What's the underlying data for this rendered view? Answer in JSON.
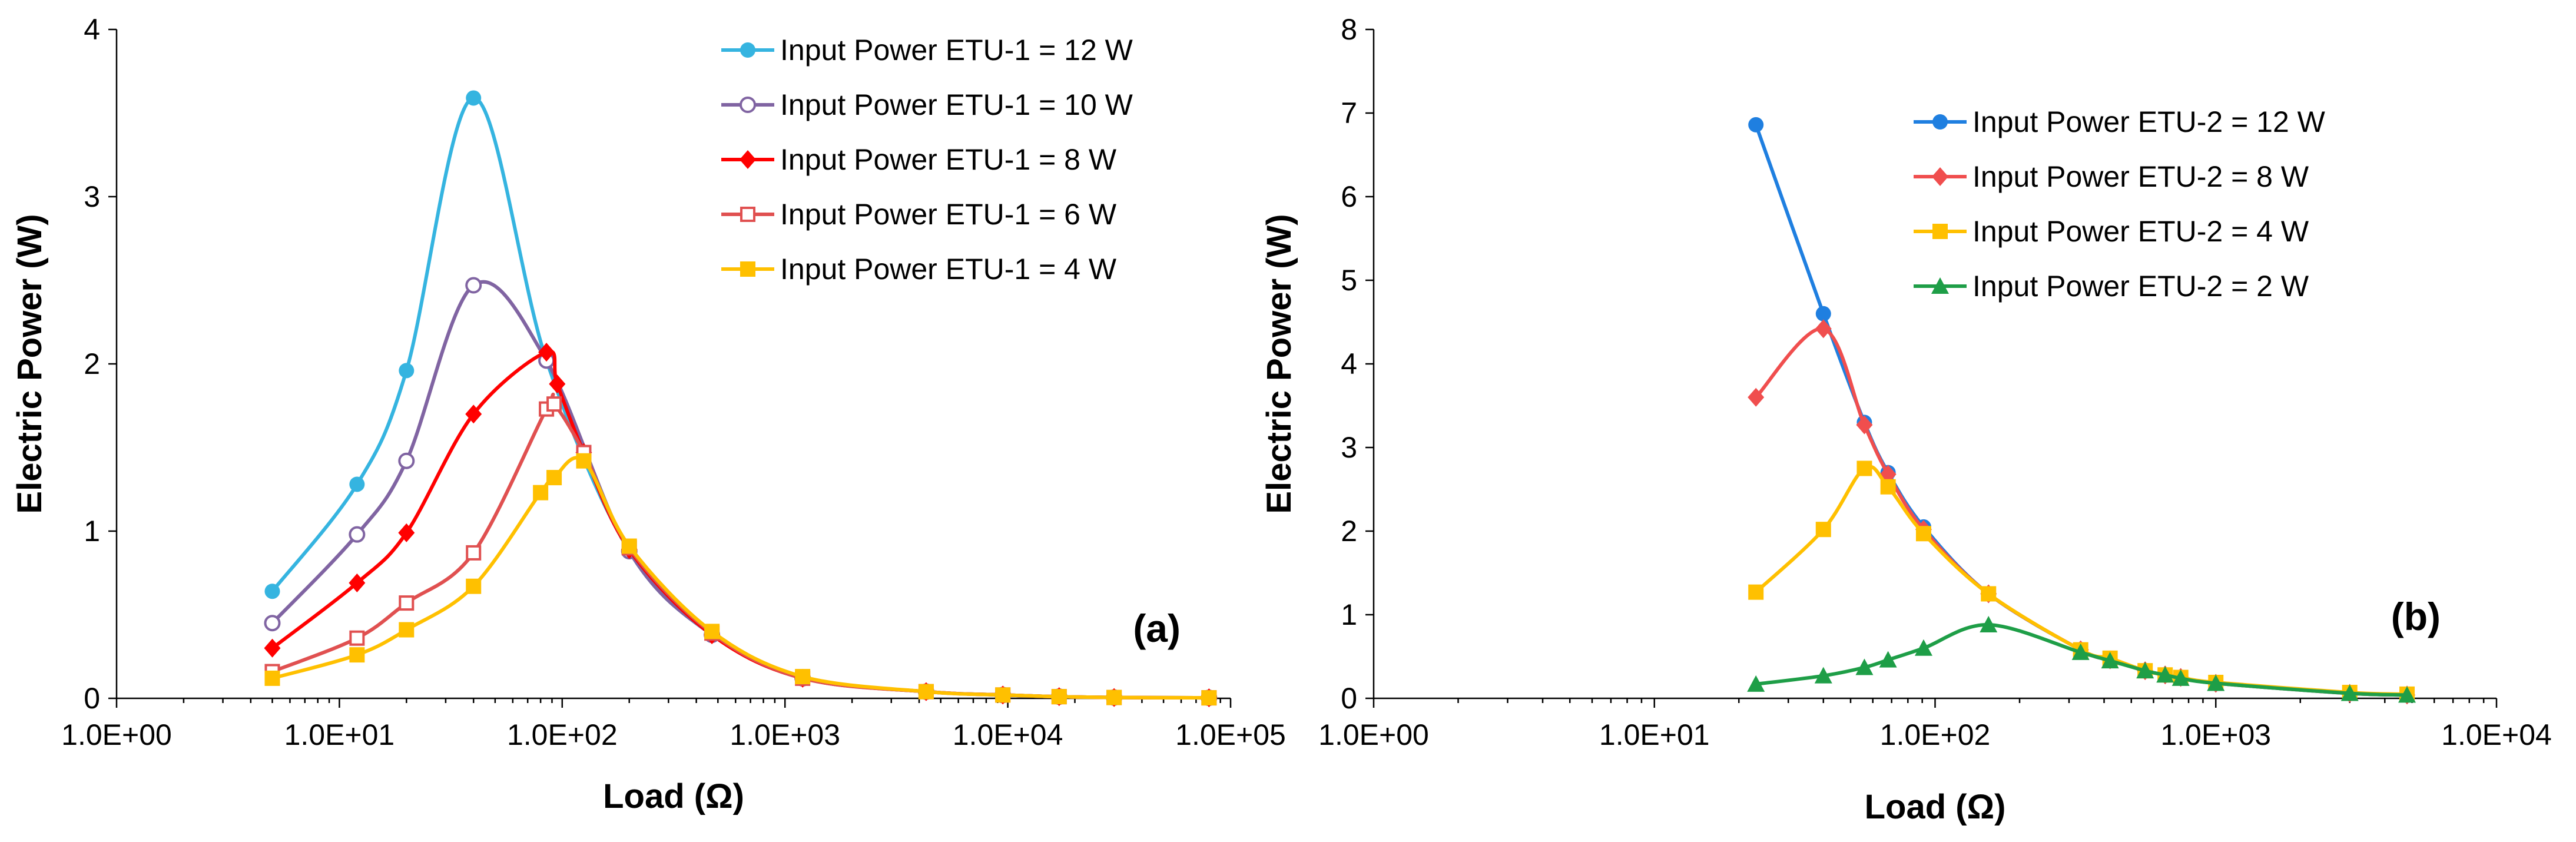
{
  "chart_data": [
    {
      "type": "line",
      "panel_label": "(a)",
      "xlabel": "Load (Ω)",
      "ylabel": "Electric Power (W)",
      "xscale": "log",
      "xlim": [
        1,
        100000
      ],
      "ylim": [
        0,
        4
      ],
      "x_ticks": [
        1,
        10,
        100,
        1000,
        10000,
        100000
      ],
      "x_tick_labels": [
        "1.0E+00",
        "1.0E+01",
        "1.0E+02",
        "1.0E+03",
        "1.0E+04",
        "1.0E+05"
      ],
      "y_ticks": [
        0,
        1,
        2,
        3,
        4
      ],
      "y_tick_labels": [
        "0",
        "1",
        "2",
        "3",
        "4"
      ],
      "grid": false,
      "legend_position": "top-right",
      "series": [
        {
          "name": "Input Power ETU-1 = 12 W",
          "color": "#35B4E0",
          "marker": "circle",
          "x": [
            5,
            12,
            20,
            40,
            85,
            200,
            470,
            1200,
            4300,
            9500,
            17000,
            30000,
            80000
          ],
          "y": [
            0.64,
            1.28,
            1.96,
            3.59,
            2.02,
            0.88,
            0.38,
            0.12,
            0.04,
            0.02,
            0.01,
            0.005,
            0.003
          ]
        },
        {
          "name": "Input Power ETU-1 = 10 W",
          "color": "#8064A2",
          "marker": "circle-open",
          "x": [
            5,
            12,
            20,
            40,
            85,
            200,
            470,
            1200,
            4300,
            9500,
            17000,
            30000,
            80000
          ],
          "y": [
            0.45,
            0.98,
            1.42,
            2.47,
            2.02,
            0.88,
            0.38,
            0.12,
            0.04,
            0.02,
            0.01,
            0.005,
            0.003
          ]
        },
        {
          "name": "Input Power ETU-1 = 8 W",
          "color": "#FF0000",
          "marker": "diamond",
          "x": [
            5,
            12,
            20,
            40,
            85,
            95,
            125,
            200,
            470,
            1200,
            4300,
            9500,
            17000,
            30000,
            80000
          ],
          "y": [
            0.3,
            0.69,
            0.99,
            1.7,
            2.07,
            1.88,
            1.47,
            0.89,
            0.38,
            0.12,
            0.04,
            0.02,
            0.01,
            0.005,
            0.003
          ]
        },
        {
          "name": "Input Power ETU-1 = 6 W",
          "color": "#E05050",
          "marker": "square-open",
          "x": [
            5,
            12,
            20,
            40,
            85,
            92,
            125,
            200,
            470,
            1200,
            4300,
            9500,
            17000,
            30000,
            80000
          ],
          "y": [
            0.16,
            0.36,
            0.57,
            0.87,
            1.73,
            1.76,
            1.47,
            0.9,
            0.39,
            0.12,
            0.04,
            0.02,
            0.01,
            0.005,
            0.003
          ]
        },
        {
          "name": "Input Power ETU-1 = 4 W",
          "color": "#FFC000",
          "marker": "square",
          "x": [
            5,
            12,
            20,
            40,
            80,
            92,
            125,
            200,
            470,
            1200,
            4300,
            9500,
            17000,
            30000,
            80000
          ],
          "y": [
            0.12,
            0.26,
            0.41,
            0.67,
            1.23,
            1.32,
            1.42,
            0.91,
            0.4,
            0.13,
            0.04,
            0.02,
            0.01,
            0.005,
            0.003
          ]
        }
      ]
    },
    {
      "type": "line",
      "panel_label": "(b)",
      "xlabel": "Load (Ω)",
      "ylabel": "Electric Power (W)",
      "xscale": "log",
      "xlim": [
        1,
        10000
      ],
      "ylim": [
        0,
        8
      ],
      "x_ticks": [
        1,
        10,
        100,
        1000,
        10000
      ],
      "x_tick_labels": [
        "1.0E+00",
        "1.0E+01",
        "1.0E+02",
        "1.0E+03",
        "1.0E+04"
      ],
      "y_ticks": [
        0,
        1,
        2,
        3,
        4,
        5,
        6,
        7,
        8
      ],
      "y_tick_labels": [
        "0",
        "1",
        "2",
        "3",
        "4",
        "5",
        "6",
        "7",
        "8"
      ],
      "grid": false,
      "legend_position": "top-right",
      "series": [
        {
          "name": "Input Power ETU-2 = 12 W",
          "color": "#1F7FE0",
          "marker": "circle",
          "x": [
            23,
            40,
            56,
            68,
            91,
            155,
            330,
            420,
            560,
            660,
            750,
            1000,
            3000,
            4800
          ],
          "y": [
            6.86,
            4.6,
            3.3,
            2.7,
            2.05,
            1.25,
            0.58,
            0.46,
            0.33,
            0.28,
            0.25,
            0.18,
            0.06,
            0.04
          ]
        },
        {
          "name": "Input Power ETU-2 = 8 W",
          "color": "#F04E4E",
          "marker": "diamond",
          "x": [
            23,
            40,
            56,
            68,
            91,
            155,
            330,
            420,
            560,
            660,
            750,
            1000,
            3000,
            4800
          ],
          "y": [
            3.6,
            4.42,
            3.27,
            2.68,
            2.02,
            1.25,
            0.58,
            0.46,
            0.33,
            0.28,
            0.25,
            0.18,
            0.06,
            0.04
          ]
        },
        {
          "name": "Input Power ETU-2 = 4 W",
          "color": "#FFC000",
          "marker": "square",
          "x": [
            23,
            40,
            56,
            68,
            91,
            155,
            330,
            420,
            560,
            660,
            750,
            1000,
            3000,
            4800
          ],
          "y": [
            1.27,
            2.02,
            2.75,
            2.53,
            1.97,
            1.25,
            0.58,
            0.48,
            0.33,
            0.28,
            0.25,
            0.19,
            0.07,
            0.05
          ]
        },
        {
          "name": "Input Power ETU-2 = 2 W",
          "color": "#1E9E47",
          "marker": "triangle",
          "x": [
            23,
            40,
            56,
            68,
            91,
            155,
            330,
            420,
            560,
            660,
            750,
            1000,
            3000,
            4800
          ],
          "y": [
            0.17,
            0.27,
            0.37,
            0.46,
            0.6,
            0.88,
            0.55,
            0.45,
            0.33,
            0.28,
            0.24,
            0.18,
            0.06,
            0.04
          ]
        }
      ]
    }
  ]
}
